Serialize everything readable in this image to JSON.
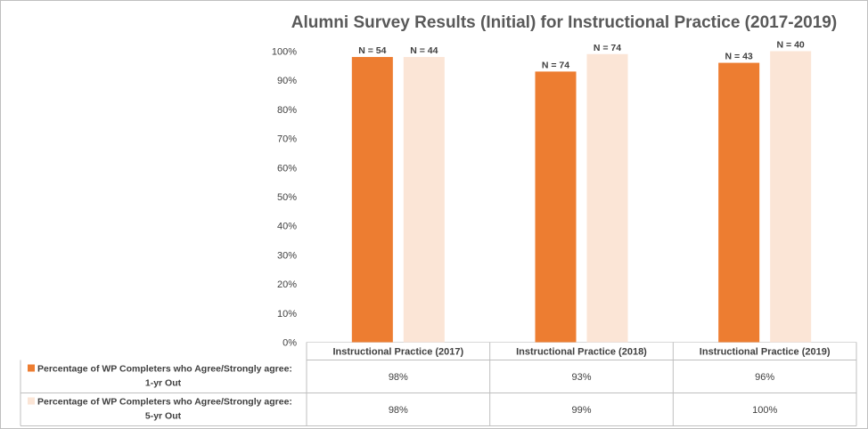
{
  "chart_data": {
    "type": "bar",
    "title": "Alumni Survey Results (Initial) for Instructional Practice (2017-2019)",
    "categories": [
      "Instructional Practice (2017)",
      "Instructional Practice (2018)",
      "Instructional Practice (2019)"
    ],
    "series": [
      {
        "name": "Percentage of WP Completers who Agree/Strongly agree: 1-yr Out",
        "legend_lines": [
          "Percentage of WP Completers who Agree/Strongly agree:",
          "1-yr Out"
        ],
        "color": "#ED7D31",
        "values": [
          98,
          93,
          96
        ],
        "display": [
          "98%",
          "93%",
          "96%"
        ],
        "n_labels": [
          "N = 54",
          "N = 74",
          "N = 43"
        ]
      },
      {
        "name": "Percentage of WP Completers who Agree/Strongly agree: 5-yr Out",
        "legend_lines": [
          "Percentage of WP Completers who Agree/Strongly agree:",
          "5-yr Out"
        ],
        "color": "#FBE5D6",
        "values": [
          98,
          99,
          100
        ],
        "display": [
          "98%",
          "99%",
          "100%"
        ],
        "n_labels": [
          "N = 44",
          "N = 74",
          "N = 40"
        ]
      }
    ],
    "y_ticks": [
      "0%",
      "10%",
      "20%",
      "30%",
      "40%",
      "50%",
      "60%",
      "70%",
      "80%",
      "90%",
      "100%"
    ],
    "ylim": [
      0,
      100
    ],
    "grid": false,
    "legend": "data-table"
  }
}
